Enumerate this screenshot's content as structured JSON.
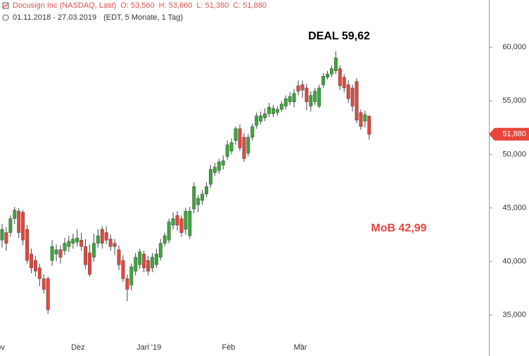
{
  "chart_data": {
    "type": "candlestick",
    "header": {
      "title": "Docusign Inc (NASDAQ, Last)",
      "open": "O: 53,560",
      "high": "H: 53,660",
      "low": "L: 51,380",
      "close": "C: 51,880",
      "range": "01.11.2018 - 27.03.2019",
      "info": "(EDT, 5 Monate, 1 Tag)"
    },
    "up_color": "#3aa83a",
    "down_color": "#e8453c",
    "ylim": [
      31.18,
      64.41
    ],
    "yticks": [
      {
        "value": 35,
        "label": "35,000"
      },
      {
        "value": 40,
        "label": "40,000"
      },
      {
        "value": 45,
        "label": "45,000"
      },
      {
        "value": 50,
        "label": "50,000"
      },
      {
        "value": 55,
        "label": "55,000"
      },
      {
        "value": 60,
        "label": "60,000"
      }
    ],
    "xlim": [
      -0.5,
      116.7
    ],
    "xticks": [
      {
        "value": -1,
        "label": "Nov"
      },
      {
        "value": 18.2,
        "label": "Dez"
      },
      {
        "value": 35.2,
        "label": "Jan '19"
      },
      {
        "value": 54.3,
        "label": "Feb"
      },
      {
        "value": 71.5,
        "label": "Mär"
      }
    ],
    "last_price": {
      "value": 51.88,
      "label": "51,880"
    },
    "annotations": [
      {
        "text": "DEAL 59,62",
        "color": "#000000"
      },
      {
        "text": "MoB 42,99",
        "color": "#e8453c"
      }
    ],
    "candles": [
      {
        "o": 42.0,
        "h": 43.5,
        "l": 41.3,
        "c": 43.0
      },
      {
        "o": 42.7,
        "h": 43.2,
        "l": 41.0,
        "c": 41.7
      },
      {
        "o": 42.7,
        "h": 44.3,
        "l": 42.3,
        "c": 44.0
      },
      {
        "o": 44.0,
        "h": 45.1,
        "l": 43.5,
        "c": 44.8
      },
      {
        "o": 44.7,
        "h": 45.0,
        "l": 42.2,
        "c": 42.7
      },
      {
        "o": 44.6,
        "h": 44.8,
        "l": 41.5,
        "c": 42.0
      },
      {
        "o": 43.0,
        "h": 43.4,
        "l": 39.8,
        "c": 40.1
      },
      {
        "o": 40.7,
        "h": 41.2,
        "l": 38.9,
        "c": 39.4
      },
      {
        "o": 40.1,
        "h": 40.5,
        "l": 38.6,
        "c": 39.1
      },
      {
        "o": 39.4,
        "h": 39.8,
        "l": 37.7,
        "c": 38.4
      },
      {
        "o": 38.4,
        "h": 38.8,
        "l": 37.0,
        "c": 37.4
      },
      {
        "o": 38.4,
        "h": 38.6,
        "l": 35.1,
        "c": 35.5
      },
      {
        "o": 40.1,
        "h": 42.0,
        "l": 39.6,
        "c": 41.4
      },
      {
        "o": 40.7,
        "h": 41.6,
        "l": 40.0,
        "c": 41.1
      },
      {
        "o": 41.1,
        "h": 41.5,
        "l": 39.8,
        "c": 40.4
      },
      {
        "o": 41.0,
        "h": 42.2,
        "l": 40.6,
        "c": 41.7
      },
      {
        "o": 41.4,
        "h": 42.4,
        "l": 40.9,
        "c": 41.9
      },
      {
        "o": 41.7,
        "h": 42.6,
        "l": 41.2,
        "c": 42.1
      },
      {
        "o": 41.8,
        "h": 43.0,
        "l": 41.4,
        "c": 42.2
      },
      {
        "o": 42.0,
        "h": 42.7,
        "l": 41.0,
        "c": 41.4
      },
      {
        "o": 41.4,
        "h": 42.1,
        "l": 39.3,
        "c": 39.7
      },
      {
        "o": 40.8,
        "h": 41.6,
        "l": 38.6,
        "c": 38.8
      },
      {
        "o": 40.4,
        "h": 42.6,
        "l": 40.0,
        "c": 41.7
      },
      {
        "o": 41.7,
        "h": 43.0,
        "l": 41.3,
        "c": 42.4
      },
      {
        "o": 43.0,
        "h": 43.3,
        "l": 41.2,
        "c": 41.7
      },
      {
        "o": 42.7,
        "h": 43.3,
        "l": 41.6,
        "c": 42.0
      },
      {
        "o": 42.1,
        "h": 42.5,
        "l": 41.0,
        "c": 41.4
      },
      {
        "o": 41.7,
        "h": 42.1,
        "l": 40.6,
        "c": 41.4
      },
      {
        "o": 41.1,
        "h": 41.5,
        "l": 39.2,
        "c": 39.7
      },
      {
        "o": 40.1,
        "h": 40.6,
        "l": 38.1,
        "c": 38.4
      },
      {
        "o": 38.4,
        "h": 38.8,
        "l": 36.3,
        "c": 37.4
      },
      {
        "o": 37.8,
        "h": 39.8,
        "l": 37.3,
        "c": 39.5
      },
      {
        "o": 39.1,
        "h": 40.8,
        "l": 38.7,
        "c": 40.4
      },
      {
        "o": 39.7,
        "h": 41.2,
        "l": 39.3,
        "c": 40.9
      },
      {
        "o": 40.7,
        "h": 41.0,
        "l": 39.0,
        "c": 39.4
      },
      {
        "o": 40.1,
        "h": 40.5,
        "l": 38.7,
        "c": 39.1
      },
      {
        "o": 39.4,
        "h": 40.8,
        "l": 39.0,
        "c": 40.4
      },
      {
        "o": 39.7,
        "h": 41.2,
        "l": 39.4,
        "c": 40.7
      },
      {
        "o": 40.4,
        "h": 42.1,
        "l": 40.1,
        "c": 41.7
      },
      {
        "o": 41.7,
        "h": 42.7,
        "l": 41.4,
        "c": 42.4
      },
      {
        "o": 42.0,
        "h": 44.0,
        "l": 41.7,
        "c": 43.7
      },
      {
        "o": 43.4,
        "h": 44.6,
        "l": 43.0,
        "c": 44.0
      },
      {
        "o": 44.3,
        "h": 44.7,
        "l": 42.9,
        "c": 43.4
      },
      {
        "o": 44.0,
        "h": 44.3,
        "l": 42.3,
        "c": 42.7
      },
      {
        "o": 43.0,
        "h": 45.0,
        "l": 42.5,
        "c": 44.7
      },
      {
        "o": 42.4,
        "h": 45.1,
        "l": 42.1,
        "c": 44.7
      },
      {
        "o": 44.9,
        "h": 47.4,
        "l": 44.5,
        "c": 47.0
      },
      {
        "o": 45.3,
        "h": 46.2,
        "l": 44.6,
        "c": 45.9
      },
      {
        "o": 45.7,
        "h": 46.7,
        "l": 45.3,
        "c": 46.3
      },
      {
        "o": 46.3,
        "h": 47.4,
        "l": 46.0,
        "c": 47.0
      },
      {
        "o": 47.2,
        "h": 49.0,
        "l": 46.9,
        "c": 48.6
      },
      {
        "o": 48.3,
        "h": 49.2,
        "l": 48.0,
        "c": 48.8
      },
      {
        "o": 48.5,
        "h": 49.6,
        "l": 48.2,
        "c": 49.3
      },
      {
        "o": 49.0,
        "h": 49.9,
        "l": 48.6,
        "c": 49.4
      },
      {
        "o": 49.8,
        "h": 51.3,
        "l": 49.5,
        "c": 50.9
      },
      {
        "o": 50.3,
        "h": 51.5,
        "l": 50.0,
        "c": 51.1
      },
      {
        "o": 51.3,
        "h": 52.6,
        "l": 50.9,
        "c": 52.4
      },
      {
        "o": 52.4,
        "h": 52.8,
        "l": 50.3,
        "c": 50.6
      },
      {
        "o": 51.6,
        "h": 52.0,
        "l": 49.3,
        "c": 49.6
      },
      {
        "o": 50.1,
        "h": 51.9,
        "l": 49.8,
        "c": 51.6
      },
      {
        "o": 51.6,
        "h": 52.9,
        "l": 51.3,
        "c": 52.6
      },
      {
        "o": 52.7,
        "h": 53.9,
        "l": 52.4,
        "c": 53.6
      },
      {
        "o": 53.1,
        "h": 54.0,
        "l": 52.8,
        "c": 53.6
      },
      {
        "o": 53.4,
        "h": 54.3,
        "l": 53.1,
        "c": 53.8
      },
      {
        "o": 53.8,
        "h": 54.8,
        "l": 53.5,
        "c": 54.4
      },
      {
        "o": 53.8,
        "h": 54.6,
        "l": 53.5,
        "c": 54.3
      },
      {
        "o": 53.9,
        "h": 54.5,
        "l": 53.6,
        "c": 54.2
      },
      {
        "o": 54.2,
        "h": 55.0,
        "l": 54.0,
        "c": 54.7
      },
      {
        "o": 54.5,
        "h": 55.5,
        "l": 54.2,
        "c": 55.2
      },
      {
        "o": 54.9,
        "h": 55.8,
        "l": 54.6,
        "c": 55.4
      },
      {
        "o": 54.9,
        "h": 56.1,
        "l": 54.4,
        "c": 55.7
      },
      {
        "o": 56.4,
        "h": 56.9,
        "l": 55.5,
        "c": 55.9
      },
      {
        "o": 56.5,
        "h": 56.9,
        "l": 55.3,
        "c": 56.0
      },
      {
        "o": 56.2,
        "h": 56.6,
        "l": 54.1,
        "c": 54.9
      },
      {
        "o": 54.5,
        "h": 55.9,
        "l": 54.0,
        "c": 55.5
      },
      {
        "o": 54.9,
        "h": 56.2,
        "l": 54.6,
        "c": 55.9
      },
      {
        "o": 54.5,
        "h": 56.5,
        "l": 54.3,
        "c": 56.2
      },
      {
        "o": 56.5,
        "h": 57.6,
        "l": 56.2,
        "c": 57.3
      },
      {
        "o": 57.2,
        "h": 57.8,
        "l": 57.0,
        "c": 57.5
      },
      {
        "o": 57.5,
        "h": 58.3,
        "l": 57.2,
        "c": 58.0
      },
      {
        "o": 57.8,
        "h": 59.62,
        "l": 57.5,
        "c": 59.0
      },
      {
        "o": 58.0,
        "h": 58.3,
        "l": 56.0,
        "c": 56.4
      },
      {
        "o": 57.2,
        "h": 57.5,
        "l": 55.8,
        "c": 56.2
      },
      {
        "o": 56.5,
        "h": 56.9,
        "l": 54.8,
        "c": 55.2
      },
      {
        "o": 56.2,
        "h": 56.5,
        "l": 54.0,
        "c": 54.5
      },
      {
        "o": 56.8,
        "h": 57.1,
        "l": 52.9,
        "c": 53.2
      },
      {
        "o": 53.9,
        "h": 54.2,
        "l": 52.3,
        "c": 52.6
      },
      {
        "o": 53.1,
        "h": 54.1,
        "l": 52.5,
        "c": 53.7
      },
      {
        "o": 53.56,
        "h": 53.66,
        "l": 51.38,
        "c": 51.88
      }
    ]
  }
}
